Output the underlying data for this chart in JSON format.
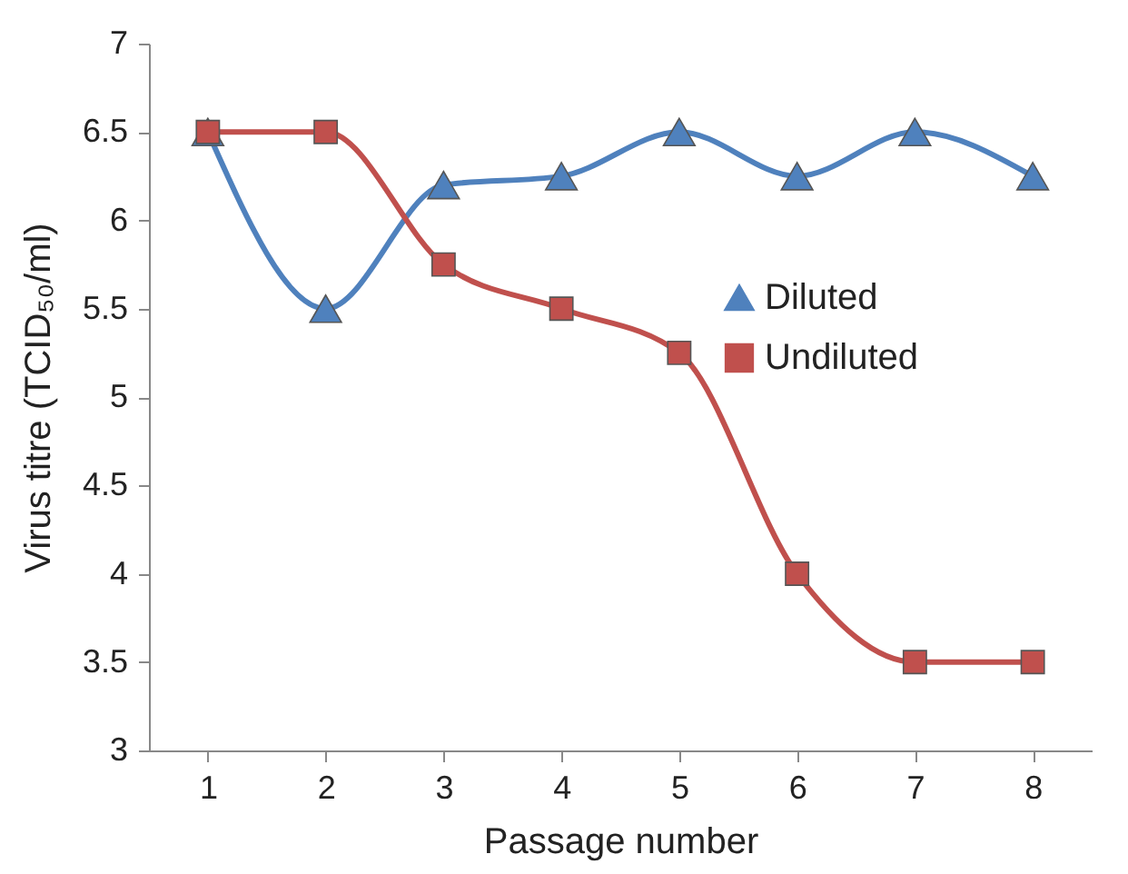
{
  "chart_data": {
    "type": "line",
    "xlabel": "Passage number",
    "ylabel": "Virus titre (TCID₅₀/ml)",
    "categories": [
      "1",
      "2",
      "3",
      "4",
      "5",
      "6",
      "7",
      "8"
    ],
    "series": [
      {
        "name": "Diluted",
        "color": "#4f81bd",
        "marker": "triangle",
        "values": [
          6.5,
          5.5,
          6.2,
          6.25,
          6.5,
          6.25,
          6.5,
          6.25
        ]
      },
      {
        "name": "Undiluted",
        "color": "#c0504d",
        "marker": "square",
        "values": [
          6.5,
          6.5,
          5.75,
          5.5,
          5.25,
          4.0,
          3.5,
          3.5
        ]
      }
    ],
    "ylim": [
      3,
      7
    ],
    "yticks": [
      3,
      3.5,
      4,
      4.5,
      5,
      5.5,
      6,
      6.5,
      7
    ],
    "grid": false,
    "legend": "right"
  }
}
